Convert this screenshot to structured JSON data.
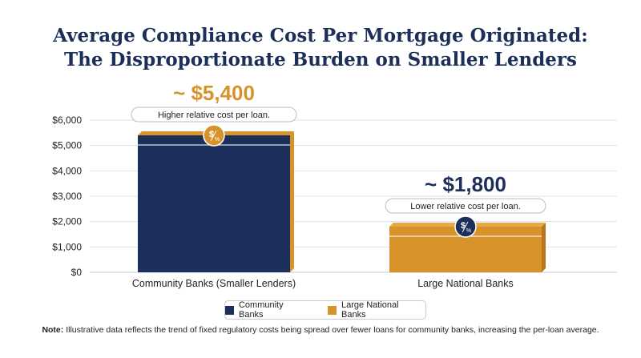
{
  "title_line1": "Average Compliance Cost Per Mortgage Originated:",
  "title_line2": "The Disproportionate Burden on Smaller Lenders",
  "note_label": "Note:",
  "note_text": "Illustrative data reflects the trend of fixed regulatory costs being spread over fewer loans for community banks, increasing the per-loan average.",
  "colors": {
    "community": "#1c2f5a",
    "national": "#d8922a",
    "title": "#1c2f5a",
    "grid": "#dde1e6"
  },
  "icon": "dollar-percent-icon",
  "chart_data": {
    "type": "bar",
    "categories": [
      "Community Banks (Smaller Lenders)",
      "Large National Banks"
    ],
    "values": [
      5400,
      1800
    ],
    "ylim": [
      0,
      6000
    ],
    "yticks": [
      "$0",
      "$1,000",
      "$2,000",
      "$3,000",
      "$4,000",
      "$5,000",
      "$6,000"
    ],
    "grid": true,
    "legend_position": "bottom-center",
    "legend": [
      "Community Banks",
      "Large National Banks"
    ],
    "value_labels": [
      "~ $5,400",
      "~ $1,800"
    ],
    "annotations": [
      "Higher relative cost per loan.",
      "Lower relative cost per loan."
    ]
  }
}
